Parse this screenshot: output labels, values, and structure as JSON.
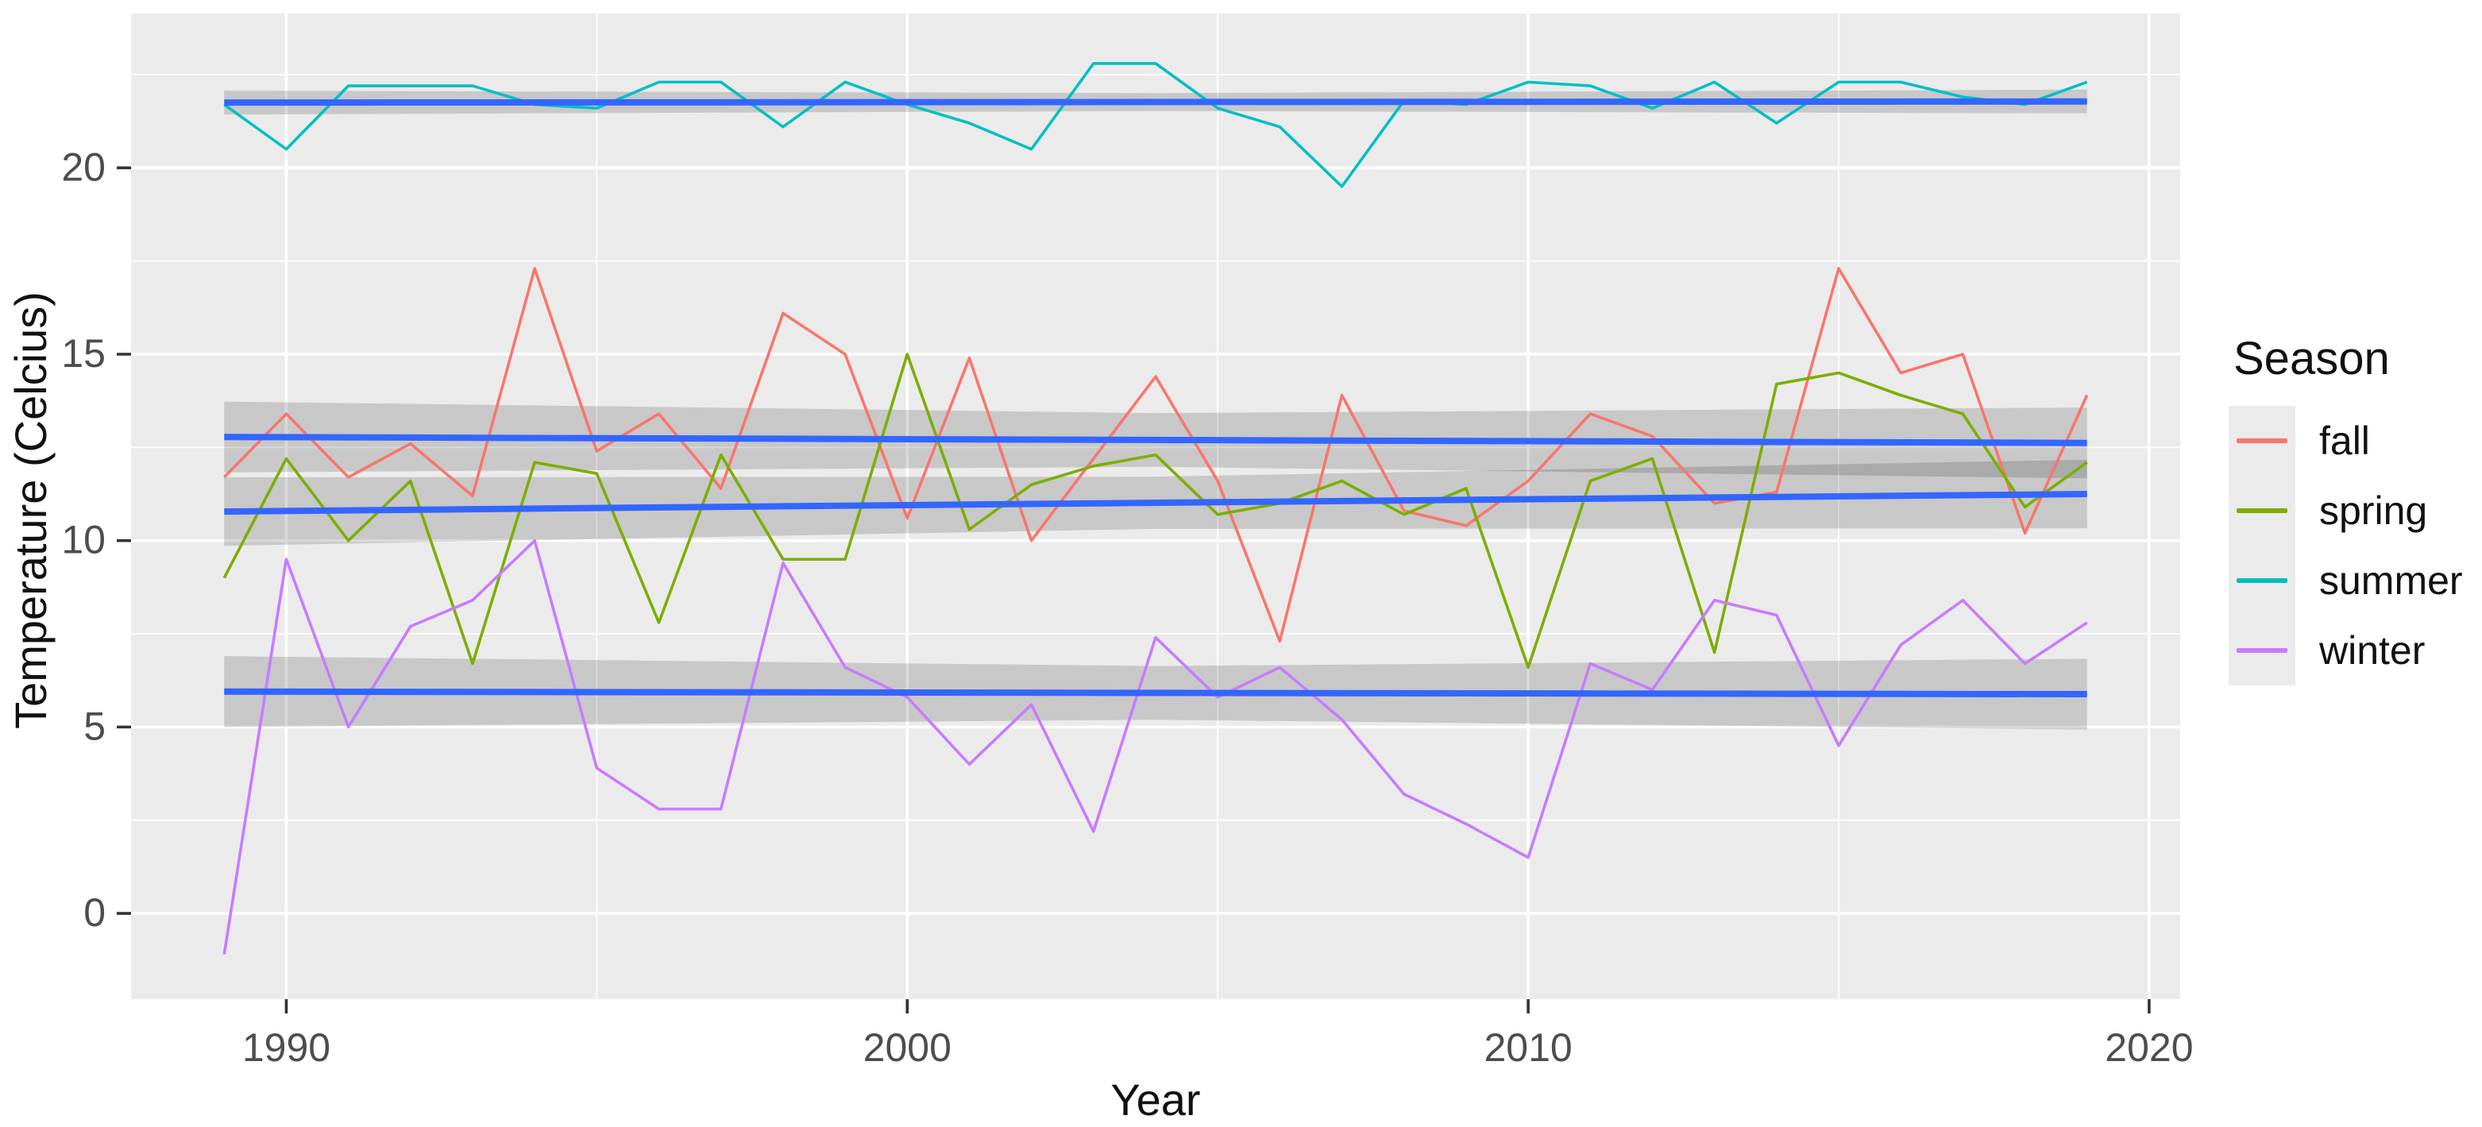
{
  "figure": {
    "xlabel": "Year",
    "ylabel": "Temperature (Celcius)"
  },
  "legend": {
    "title": "Season",
    "items": [
      {
        "label": "fall",
        "color": "#F8766D"
      },
      {
        "label": "spring",
        "color": "#7CAE00"
      },
      {
        "label": "summer",
        "color": "#00BFC4"
      },
      {
        "label": "winter",
        "color": "#C77CFF"
      }
    ]
  },
  "chart_data": {
    "type": "line",
    "title": "",
    "xlabel": "Year",
    "ylabel": "Temperature (Celcius)",
    "x": [
      1989,
      1990,
      1991,
      1992,
      1993,
      1994,
      1995,
      1996,
      1997,
      1998,
      1999,
      2000,
      2001,
      2002,
      2003,
      2004,
      2005,
      2006,
      2007,
      2008,
      2009,
      2010,
      2011,
      2012,
      2013,
      2014,
      2015,
      2016,
      2017,
      2018,
      2019
    ],
    "series": [
      {
        "name": "fall",
        "color": "#F8766D",
        "values": [
          11.7,
          13.4,
          11.7,
          12.6,
          11.2,
          17.3,
          12.4,
          13.4,
          11.4,
          16.1,
          15.0,
          10.6,
          14.9,
          10.0,
          12.2,
          14.4,
          11.6,
          7.3,
          13.9,
          10.8,
          10.4,
          11.6,
          13.4,
          12.8,
          11.0,
          11.3,
          17.3,
          14.5,
          15.0,
          10.2,
          13.9
        ]
      },
      {
        "name": "spring",
        "color": "#7CAE00",
        "values": [
          9.0,
          12.2,
          10.0,
          11.6,
          6.7,
          12.1,
          11.8,
          7.8,
          12.3,
          9.5,
          9.5,
          15.0,
          10.3,
          11.5,
          12.0,
          12.3,
          10.7,
          11.0,
          11.6,
          10.7,
          11.4,
          6.6,
          11.6,
          12.2,
          7.0,
          14.2,
          14.5,
          13.9,
          13.4,
          10.9,
          12.1
        ]
      },
      {
        "name": "summer",
        "color": "#00BFC4",
        "values": [
          21.7,
          20.5,
          22.2,
          22.2,
          22.2,
          21.7,
          21.6,
          22.3,
          22.3,
          21.1,
          22.3,
          21.7,
          21.2,
          20.5,
          22.8,
          22.8,
          21.6,
          21.1,
          19.5,
          21.8,
          21.7,
          22.3,
          22.2,
          21.6,
          22.3,
          21.2,
          22.3,
          22.3,
          21.9,
          21.7,
          22.3
        ]
      },
      {
        "name": "winter",
        "color": "#C77CFF",
        "values": [
          -1.1,
          9.5,
          5.0,
          7.7,
          8.4,
          10.0,
          3.9,
          2.8,
          2.8,
          9.4,
          6.6,
          5.8,
          4.0,
          5.6,
          2.2,
          7.4,
          5.8,
          6.6,
          5.2,
          3.2,
          2.4,
          1.5,
          6.7,
          6.0,
          8.4,
          8.0,
          4.5,
          7.2,
          8.4,
          6.7,
          7.8
        ]
      }
    ],
    "trend_lines": [
      {
        "series": "fall",
        "method": "lm",
        "color": "#3366FF",
        "y_start": 12.78,
        "y_end": 12.62,
        "ci_half_end": 0.95,
        "ci_half_mid": 0.72
      },
      {
        "series": "spring",
        "method": "lm",
        "color": "#3366FF",
        "y_start": 10.78,
        "y_end": 11.25,
        "ci_half_end": 0.92,
        "ci_half_mid": 0.7
      },
      {
        "series": "summer",
        "method": "lm",
        "color": "#3366FF",
        "y_start": 21.75,
        "y_end": 21.78,
        "ci_half_end": 0.32,
        "ci_half_mid": 0.24
      },
      {
        "series": "winter",
        "method": "lm",
        "color": "#3366FF",
        "y_start": 5.95,
        "y_end": 5.88,
        "ci_half_end": 0.95,
        "ci_half_mid": 0.72
      }
    ],
    "xlim": [
      1987.5,
      2020.5
    ],
    "ylim": [
      -2.3,
      24.14
    ],
    "x_ticks": [
      1990,
      2000,
      2010,
      2020
    ],
    "y_ticks": [
      0,
      5,
      10,
      15,
      20
    ],
    "x_minor": [
      1995,
      2005,
      2015
    ],
    "y_minor": [
      2.5,
      7.5,
      12.5,
      17.5,
      22.5
    ],
    "grid": true,
    "legend_position": "right",
    "theme": {
      "panel_bg": "#EBEBEB",
      "grid_color": "#FFFFFF",
      "band_color": "rgba(0,0,0,0.15)",
      "tick_mark_color": "#333333",
      "tick_label_color": "#4D4D4D",
      "axis_title_color": "#111111",
      "outer_bg": "#FFFFFF"
    }
  }
}
